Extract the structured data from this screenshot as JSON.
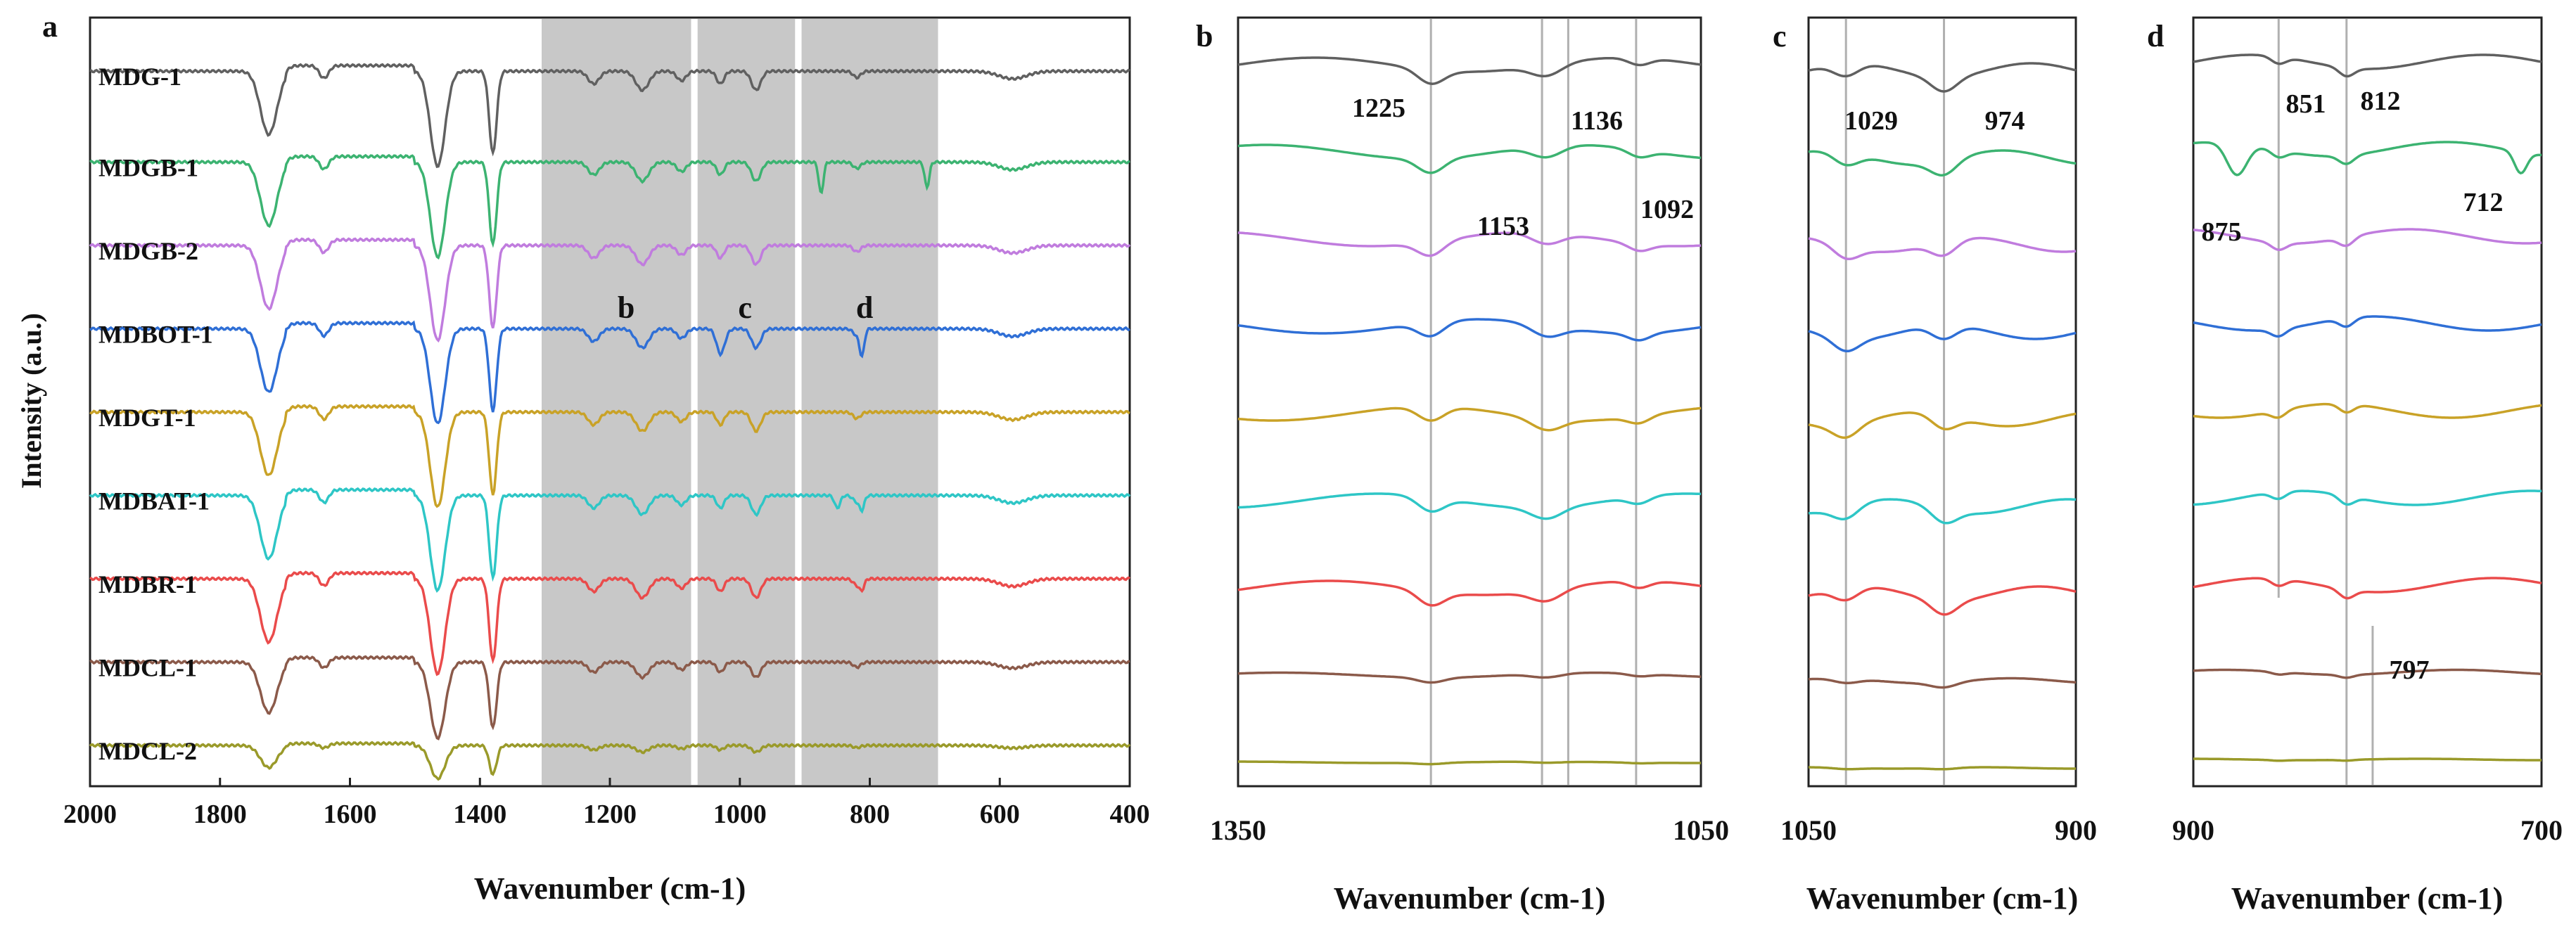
{
  "chart_data": [
    {
      "panel": "a",
      "type": "line",
      "xlabel": "Wavenumber (cm-1)",
      "ylabel": "Intensity (a.u.)",
      "xlim": [
        2000,
        400
      ],
      "xticks": [
        2000,
        1800,
        1600,
        1400,
        1200,
        1000,
        800,
        600,
        400
      ],
      "shaded_regions": [
        [
          1305,
          1075
        ],
        [
          1065,
          915
        ],
        [
          905,
          695
        ]
      ],
      "region_labels": [
        {
          "text": "b",
          "x": 1175
        },
        {
          "text": "c",
          "x": 992
        },
        {
          "text": "d",
          "x": 808
        }
      ],
      "series": [
        {
          "name": "MDG-1",
          "color": "#606060",
          "baseline": 100
        },
        {
          "name": "MDGB-1",
          "color": "#3cb371",
          "baseline": 88
        },
        {
          "name": "MDGB-2",
          "color": "#c07cde",
          "baseline": 77
        },
        {
          "name": "MDBOT-1",
          "color": "#2f6fd6",
          "baseline": 66
        },
        {
          "name": "MDGT-1",
          "color": "#c9a227",
          "baseline": 55
        },
        {
          "name": "MDBAT-1",
          "color": "#2ec6c6",
          "baseline": 44
        },
        {
          "name": "MDBR-1",
          "color": "#ea4b4b",
          "baseline": 33
        },
        {
          "name": "MDCL-1",
          "color": "#8b5a4a",
          "baseline": 22
        },
        {
          "name": "MDCL-2",
          "color": "#9a9a2a",
          "baseline": 11
        }
      ]
    },
    {
      "panel": "b",
      "type": "line",
      "xlabel": "Wavenumber (cm-1)",
      "xlim": [
        1350,
        1050
      ],
      "xticks": [
        1350,
        1050
      ],
      "markers": [
        1225,
        1153,
        1136,
        1092
      ],
      "annotations": [
        "1225",
        "1153",
        "1136",
        "1092"
      ]
    },
    {
      "panel": "c",
      "type": "line",
      "xlabel": "Wavenumber (cm-1)",
      "xlim": [
        1050,
        900
      ],
      "xticks": [
        1050,
        900
      ],
      "markers": [
        1029,
        974
      ],
      "annotations": [
        "1029",
        "974"
      ]
    },
    {
      "panel": "d",
      "type": "line",
      "xlabel": "Wavenumber (cm-1)",
      "xlim": [
        900,
        700
      ],
      "xticks": [
        900,
        700
      ],
      "markers": [
        851,
        812,
        797
      ],
      "annotations": [
        "851",
        "812",
        "875",
        "712",
        "797"
      ]
    }
  ]
}
